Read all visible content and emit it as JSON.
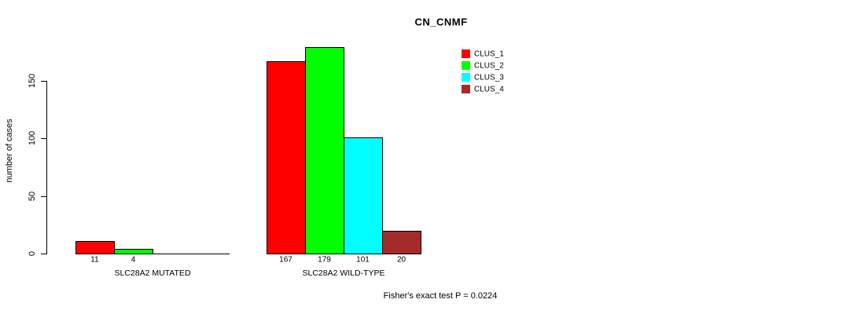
{
  "chart_data": {
    "type": "bar",
    "title": "CN_CNMF",
    "ylabel": "number of cases",
    "annotation": "Fisher's exact test P = 0.0224",
    "yticks": [
      0,
      50,
      100,
      150
    ],
    "ylim": [
      0,
      185
    ],
    "grid": false,
    "legend_position": "top-right",
    "background_color": "#ffffff",
    "axis_color": "#000000",
    "legend": [
      {
        "label": "CLUS_1",
        "color": "#ff0000"
      },
      {
        "label": "CLUS_2",
        "color": "#00ff00"
      },
      {
        "label": "CLUS_3",
        "color": "#00ffff"
      },
      {
        "label": "CLUS_4",
        "color": "#a52a2a"
      }
    ],
    "groups": [
      {
        "label": "SLC28A2 MUTATED",
        "values": [
          11,
          4,
          0,
          0
        ]
      },
      {
        "label": "SLC28A2 WILD-TYPE",
        "values": [
          167,
          179,
          101,
          20
        ]
      }
    ]
  }
}
